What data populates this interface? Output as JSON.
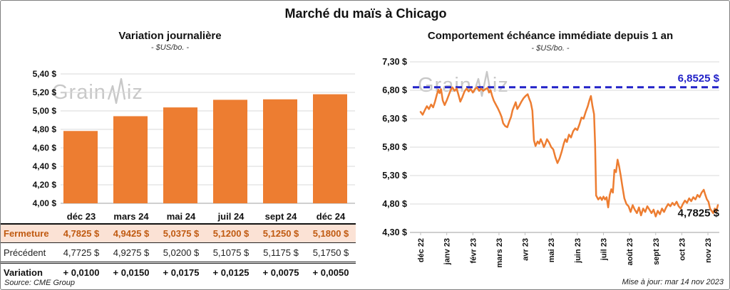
{
  "header": {
    "title": "Marché du maïs à Chicago"
  },
  "watermark": {
    "text": "GrainWiz",
    "part1": "Grain",
    "part2": "iz"
  },
  "source": "Source: CME Group",
  "updated": "Mise à jour: mar 14 nov 2023",
  "colors": {
    "bar_orange": "#ED7D31",
    "line_orange": "#ED7D31",
    "reference_blue": "#2222C8",
    "close_row_bg": "#FBE2D5",
    "close_text": "#C05A11",
    "variation_green": "#00A338",
    "gridline": "#D9D9D9",
    "axis": "#BFBFBF",
    "watermark_gray": "#C8C8C8"
  },
  "table": {
    "columns": [
      "déc 23",
      "mars 24",
      "mai 24",
      "juil 24",
      "sept 24",
      "déc 24"
    ],
    "rows": [
      {
        "label": "Fermeture",
        "style": "close",
        "values": [
          "4,7825 $",
          "4,9425 $",
          "5,0375 $",
          "5,1200 $",
          "5,1250 $",
          "5,1800 $"
        ]
      },
      {
        "label": "Précédent",
        "style": "previous",
        "values": [
          "4,7725 $",
          "4,9275 $",
          "5,0200 $",
          "5,1075 $",
          "5,1175 $",
          "5,1750 $"
        ]
      },
      {
        "label": "Variation",
        "style": "variation",
        "values": [
          "+ 0,0100",
          "+ 0,0150",
          "+ 0,0175",
          "+ 0,0125",
          "+ 0,0075",
          "+ 0,0050"
        ]
      }
    ]
  },
  "chart_data": [
    {
      "type": "bar",
      "title": "Variation journalière",
      "subtitle": "- $US/bo. -",
      "categories": [
        "déc 23",
        "mars 24",
        "mai 24",
        "juil 24",
        "sept 24",
        "déc 24"
      ],
      "values": [
        4.7825,
        4.9425,
        5.0375,
        5.12,
        5.125,
        5.18
      ],
      "ylim": [
        4.0,
        5.4
      ],
      "grid": true,
      "y_ticks": [
        {
          "v": 5.4,
          "label": "5,40 $"
        },
        {
          "v": 5.2,
          "label": "5,20 $"
        },
        {
          "v": 5.0,
          "label": "5,00 $"
        },
        {
          "v": 4.8,
          "label": "4,80 $"
        },
        {
          "v": 4.6,
          "label": "4,60 $"
        },
        {
          "v": 4.4,
          "label": "4,40 $"
        },
        {
          "v": 4.2,
          "label": "4,20 $"
        },
        {
          "v": 4.0,
          "label": "4,00 $"
        }
      ]
    },
    {
      "type": "line",
      "title": "Comportement échéance immédiate depuis 1 an",
      "subtitle": "- $US/bo. -",
      "ylim": [
        4.3,
        7.3
      ],
      "grid": true,
      "y_ticks": [
        {
          "v": 7.3,
          "label": "7,30 $"
        },
        {
          "v": 6.8,
          "label": "6,80 $"
        },
        {
          "v": 6.3,
          "label": "6,30 $"
        },
        {
          "v": 5.8,
          "label": "5,80 $"
        },
        {
          "v": 5.3,
          "label": "5,30 $"
        },
        {
          "v": 4.8,
          "label": "4,80 $"
        },
        {
          "v": 4.3,
          "label": "4,30 $"
        }
      ],
      "x_tick_labels": [
        "déc 22",
        "janv 23",
        "févr 23",
        "mars 23",
        "avr 23",
        "mai 23",
        "juin 23",
        "juil 23",
        "août 23",
        "sept 23",
        "oct 23",
        "nov 23"
      ],
      "reference_line": {
        "value": 6.8525,
        "label": "6,8525 $"
      },
      "last_value": 4.7825,
      "last_value_label": "4,7825 $",
      "points": [
        [
          0.0,
          6.42
        ],
        [
          0.08,
          6.37
        ],
        [
          0.16,
          6.45
        ],
        [
          0.24,
          6.52
        ],
        [
          0.32,
          6.47
        ],
        [
          0.4,
          6.55
        ],
        [
          0.48,
          6.5
        ],
        [
          0.55,
          6.6
        ],
        [
          0.62,
          6.72
        ],
        [
          0.68,
          6.81
        ],
        [
          0.73,
          6.75
        ],
        [
          0.78,
          6.82
        ],
        [
          0.85,
          6.62
        ],
        [
          0.92,
          6.54
        ],
        [
          1.0,
          6.62
        ],
        [
          1.08,
          6.72
        ],
        [
          1.15,
          6.8
        ],
        [
          1.22,
          6.85
        ],
        [
          1.3,
          6.79
        ],
        [
          1.38,
          6.83
        ],
        [
          1.45,
          6.72
        ],
        [
          1.52,
          6.6
        ],
        [
          1.6,
          6.68
        ],
        [
          1.68,
          6.78
        ],
        [
          1.76,
          6.83
        ],
        [
          1.84,
          6.78
        ],
        [
          1.92,
          6.82
        ],
        [
          2.0,
          6.76
        ],
        [
          2.08,
          6.82
        ],
        [
          2.16,
          6.85
        ],
        [
          2.24,
          6.79
        ],
        [
          2.32,
          6.83
        ],
        [
          2.4,
          6.79
        ],
        [
          2.48,
          6.82
        ],
        [
          2.56,
          6.84
        ],
        [
          2.62,
          6.76
        ],
        [
          2.68,
          6.8
        ],
        [
          2.74,
          6.7
        ],
        [
          2.8,
          6.62
        ],
        [
          2.88,
          6.55
        ],
        [
          2.96,
          6.48
        ],
        [
          3.04,
          6.4
        ],
        [
          3.1,
          6.33
        ],
        [
          3.16,
          6.22
        ],
        [
          3.24,
          6.17
        ],
        [
          3.32,
          6.15
        ],
        [
          3.4,
          6.26
        ],
        [
          3.46,
          6.33
        ],
        [
          3.52,
          6.45
        ],
        [
          3.58,
          6.52
        ],
        [
          3.64,
          6.59
        ],
        [
          3.7,
          6.47
        ],
        [
          3.78,
          6.53
        ],
        [
          3.86,
          6.6
        ],
        [
          3.94,
          6.66
        ],
        [
          4.02,
          6.7
        ],
        [
          4.1,
          6.73
        ],
        [
          4.16,
          6.65
        ],
        [
          4.22,
          6.58
        ],
        [
          4.28,
          6.44
        ],
        [
          4.34,
          5.92
        ],
        [
          4.4,
          5.82
        ],
        [
          4.48,
          5.9
        ],
        [
          4.54,
          5.86
        ],
        [
          4.6,
          5.94
        ],
        [
          4.66,
          5.88
        ],
        [
          4.72,
          5.8
        ],
        [
          4.78,
          5.86
        ],
        [
          4.84,
          5.94
        ],
        [
          4.92,
          5.88
        ],
        [
          5.0,
          5.8
        ],
        [
          5.08,
          5.76
        ],
        [
          5.16,
          5.62
        ],
        [
          5.24,
          5.52
        ],
        [
          5.32,
          5.6
        ],
        [
          5.4,
          5.72
        ],
        [
          5.48,
          5.86
        ],
        [
          5.54,
          5.94
        ],
        [
          5.6,
          5.89
        ],
        [
          5.68,
          6.02
        ],
        [
          5.76,
          5.97
        ],
        [
          5.84,
          6.08
        ],
        [
          5.92,
          6.13
        ],
        [
          6.0,
          6.1
        ],
        [
          6.08,
          6.2
        ],
        [
          6.16,
          6.32
        ],
        [
          6.24,
          6.3
        ],
        [
          6.32,
          6.42
        ],
        [
          6.4,
          6.52
        ],
        [
          6.46,
          6.62
        ],
        [
          6.52,
          6.7
        ],
        [
          6.58,
          6.52
        ],
        [
          6.64,
          6.38
        ],
        [
          6.68,
          5.84
        ],
        [
          6.72,
          4.95
        ],
        [
          6.8,
          4.88
        ],
        [
          6.88,
          4.92
        ],
        [
          6.94,
          4.87
        ],
        [
          7.0,
          4.93
        ],
        [
          7.06,
          4.88
        ],
        [
          7.12,
          4.92
        ],
        [
          7.18,
          4.74
        ],
        [
          7.24,
          4.96
        ],
        [
          7.3,
          5.06
        ],
        [
          7.36,
          5.0
        ],
        [
          7.42,
          5.4
        ],
        [
          7.48,
          5.36
        ],
        [
          7.54,
          5.58
        ],
        [
          7.6,
          5.46
        ],
        [
          7.66,
          5.3
        ],
        [
          7.72,
          5.12
        ],
        [
          7.8,
          4.9
        ],
        [
          7.88,
          4.8
        ],
        [
          7.96,
          4.76
        ],
        [
          8.04,
          4.66
        ],
        [
          8.12,
          4.78
        ],
        [
          8.2,
          4.7
        ],
        [
          8.28,
          4.64
        ],
        [
          8.36,
          4.74
        ],
        [
          8.44,
          4.6
        ],
        [
          8.52,
          4.72
        ],
        [
          8.6,
          4.66
        ],
        [
          8.68,
          4.76
        ],
        [
          8.76,
          4.7
        ],
        [
          8.84,
          4.64
        ],
        [
          8.92,
          4.7
        ],
        [
          9.0,
          4.58
        ],
        [
          9.08,
          4.68
        ],
        [
          9.16,
          4.62
        ],
        [
          9.24,
          4.72
        ],
        [
          9.32,
          4.66
        ],
        [
          9.4,
          4.74
        ],
        [
          9.48,
          4.8
        ],
        [
          9.56,
          4.76
        ],
        [
          9.64,
          4.82
        ],
        [
          9.72,
          4.78
        ],
        [
          9.8,
          4.84
        ],
        [
          9.88,
          4.76
        ],
        [
          9.96,
          4.72
        ],
        [
          10.04,
          4.8
        ],
        [
          10.12,
          4.86
        ],
        [
          10.2,
          4.82
        ],
        [
          10.28,
          4.9
        ],
        [
          10.36,
          4.85
        ],
        [
          10.44,
          4.92
        ],
        [
          10.52,
          4.88
        ],
        [
          10.6,
          4.96
        ],
        [
          10.68,
          4.92
        ],
        [
          10.76,
          5.0
        ],
        [
          10.84,
          5.05
        ],
        [
          10.9,
          4.96
        ],
        [
          10.96,
          4.88
        ],
        [
          11.02,
          4.84
        ],
        [
          11.08,
          4.72
        ],
        [
          11.14,
          4.68
        ],
        [
          11.2,
          4.64
        ],
        [
          11.26,
          4.72
        ],
        [
          11.32,
          4.67
        ],
        [
          11.38,
          4.78
        ]
      ]
    }
  ]
}
